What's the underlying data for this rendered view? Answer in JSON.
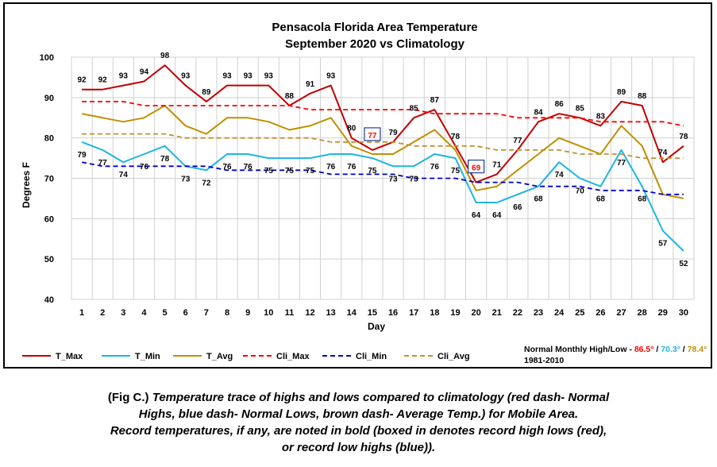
{
  "chart_data": {
    "type": "line",
    "title": "Pensacola Florida Area Temperature",
    "subtitle": "September 2020 vs Climatology",
    "xlabel": "Day",
    "ylabel": "Degrees F",
    "x": [
      1,
      2,
      3,
      4,
      5,
      6,
      7,
      8,
      9,
      10,
      11,
      12,
      13,
      14,
      15,
      16,
      17,
      18,
      19,
      20,
      21,
      22,
      23,
      24,
      25,
      26,
      27,
      28,
      29,
      30
    ],
    "ylim": [
      40,
      100
    ],
    "yticks": [
      40,
      50,
      60,
      70,
      80,
      90,
      100
    ],
    "grid": true,
    "legend_position": "bottom",
    "series": [
      {
        "name": "T_Max",
        "color": "#C00000",
        "style": "solid",
        "values": [
          92,
          92,
          93,
          94,
          98,
          93,
          89,
          93,
          93,
          93,
          88,
          91,
          93,
          80,
          77,
          79,
          85,
          87,
          78,
          69,
          71,
          77,
          84,
          86,
          85,
          83,
          89,
          88,
          74,
          78
        ]
      },
      {
        "name": "T_Min",
        "color": "#1EB4E6",
        "style": "solid",
        "values": [
          79,
          77,
          74,
          76,
          78,
          73,
          72,
          76,
          76,
          75,
          75,
          75,
          76,
          76,
          75,
          73,
          73,
          76,
          75,
          64,
          64,
          66,
          68,
          74,
          70,
          68,
          77,
          68,
          57,
          52
        ]
      },
      {
        "name": "T_Avg",
        "color": "#BF9000",
        "style": "solid",
        "values": [
          86,
          85,
          84,
          85,
          88,
          83,
          81,
          85,
          85,
          84,
          82,
          83,
          85,
          78,
          76,
          76,
          79,
          82,
          77,
          67,
          68,
          72,
          76,
          80,
          78,
          76,
          83,
          78,
          66,
          65
        ]
      },
      {
        "name": "Cli_Max",
        "color": "#FF0000",
        "style": "dashed",
        "values": [
          89,
          89,
          89,
          88,
          88,
          88,
          88,
          88,
          88,
          88,
          88,
          87,
          87,
          87,
          87,
          87,
          87,
          86,
          86,
          86,
          86,
          85,
          85,
          85,
          85,
          84,
          84,
          84,
          84,
          83
        ]
      },
      {
        "name": "Cli_Min",
        "color": "#0000CC",
        "style": "dashed",
        "values": [
          74,
          73,
          73,
          73,
          73,
          73,
          73,
          72,
          72,
          72,
          72,
          72,
          71,
          71,
          71,
          71,
          70,
          70,
          70,
          69,
          69,
          69,
          68,
          68,
          68,
          67,
          67,
          67,
          66,
          66
        ]
      },
      {
        "name": "Cli_Avg",
        "color": "#C09030",
        "style": "dashed",
        "values": [
          81,
          81,
          81,
          81,
          81,
          80,
          80,
          80,
          80,
          80,
          80,
          80,
          79,
          79,
          79,
          79,
          78,
          78,
          78,
          78,
          77,
          77,
          77,
          77,
          76,
          76,
          76,
          75,
          75,
          75
        ]
      }
    ],
    "data_labels": {
      "T_Max": [
        "92",
        "92",
        "93",
        "94",
        "98",
        "93",
        "89",
        "93",
        "93",
        "93",
        "88",
        "91",
        "93",
        "80",
        "77",
        "79",
        "85",
        "87",
        "78",
        "69",
        "71",
        "77",
        "84",
        "86",
        "85",
        "83",
        "89",
        "88",
        "74",
        "78"
      ],
      "T_Min": [
        "79",
        "77",
        "74",
        "76",
        "78",
        "73",
        "72",
        "76",
        "76",
        "75",
        "75",
        "75",
        "76",
        "76",
        "75",
        "73",
        "73",
        "76",
        "75",
        "64",
        "64",
        "66",
        "68",
        "74",
        "70",
        "68",
        "77",
        "68",
        "57",
        "52"
      ]
    },
    "record_boxes": [
      {
        "day": 15,
        "value": "77",
        "series": "T_Max",
        "text_color": "#FF0000",
        "box_color": "#1E3CA0"
      },
      {
        "day": 20,
        "value": "69",
        "series": "T_Max",
        "text_color": "#FF0000",
        "box_color": "#1E3CA0"
      }
    ],
    "normals_note": {
      "prefix": "Normal Monthly High/Low -",
      "high": "86.5°",
      "sep1": "/",
      "low": "70.3°",
      "sep2": "/",
      "avg": "78.4°",
      "period": "1981-2010",
      "high_color": "#FF0000",
      "low_color": "#1EB4E6",
      "avg_color": "#BF9000"
    }
  },
  "caption": {
    "prefix": "(Fig C.) ",
    "line1_italic": "Temperature trace of highs and lows compared to climatology (red dash- Normal",
    "line2": "Highs, blue dash- Normal Lows, brown dash- Average Temp.) for Mobile Area.",
    "line3": "Record temperatures, if any, are noted in bold (boxed in denotes record high lows (red),",
    "line4": "or record low highs (blue))."
  }
}
